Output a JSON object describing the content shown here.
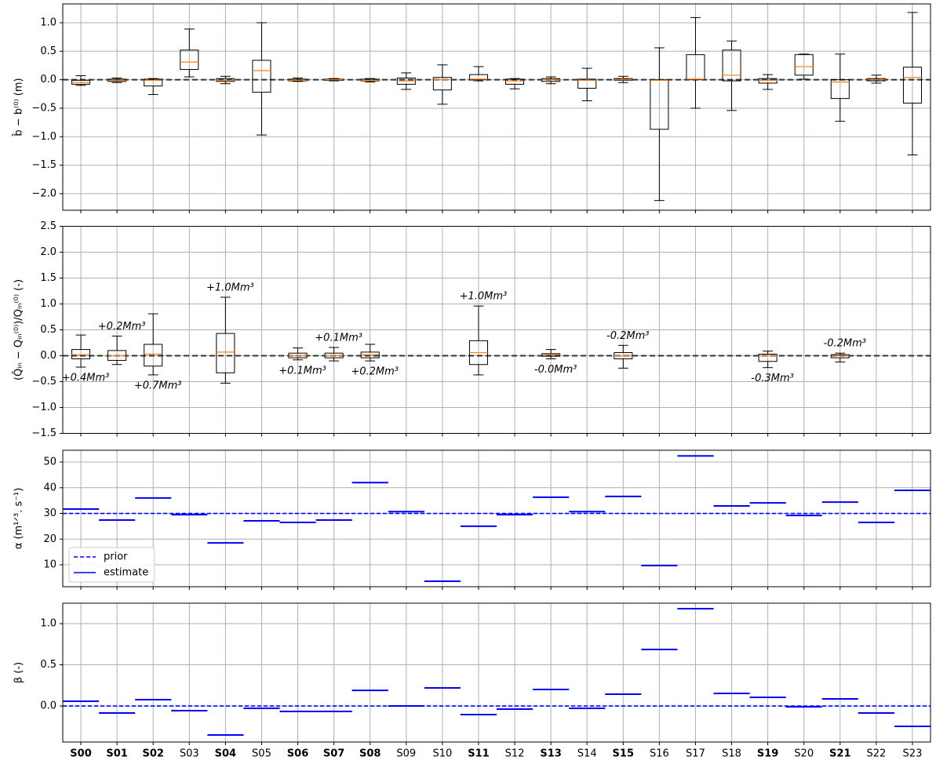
{
  "chart_data": [
    {
      "type": "box",
      "ylabel": "b̂ − b⁽⁰⁾ (m)",
      "ylim": [
        -2.29,
        1.33
      ],
      "yticks": [
        {
          "value": -2.0,
          "label": "−2.0"
        },
        {
          "value": -1.5,
          "label": "−1.5"
        },
        {
          "value": -1.0,
          "label": "−1.0"
        },
        {
          "value": -0.5,
          "label": "−0.5"
        },
        {
          "value": 0,
          "label": "0.0"
        },
        0.5,
        {
          "value": 1.0,
          "label": "1.0"
        }
      ],
      "grid": true,
      "reference_line": 0,
      "median_color": "#ff7f0e",
      "whisker_low": [
        -0.1,
        -0.05,
        -0.26,
        0.05,
        -0.07,
        -0.97,
        -0.03,
        -0.02,
        -0.04,
        -0.17,
        -0.43,
        -0.02,
        -0.16,
        -0.07,
        -0.37,
        -0.05,
        -2.12,
        -0.5,
        -0.54,
        -0.17,
        0.01,
        -0.73,
        -0.06,
        -1.32
      ],
      "q1": [
        -0.08,
        -0.03,
        -0.11,
        0.18,
        -0.03,
        -0.22,
        -0.02,
        -0.01,
        -0.02,
        -0.08,
        -0.18,
        0.0,
        -0.08,
        -0.03,
        -0.15,
        -0.01,
        -0.87,
        0.0,
        -0.02,
        -0.06,
        0.08,
        -0.33,
        -0.02,
        -0.41
      ],
      "median": [
        -0.05,
        -0.01,
        -0.01,
        0.31,
        -0.01,
        0.16,
        -0.01,
        0.0,
        -0.01,
        -0.02,
        0.0,
        0.01,
        -0.02,
        0.0,
        -0.01,
        0.0,
        -0.01,
        0.01,
        0.08,
        -0.01,
        0.23,
        -0.04,
        0.0,
        0.04
      ],
      "q3": [
        -0.01,
        0.01,
        0.01,
        0.52,
        0.02,
        0.34,
        0.01,
        0.01,
        0.01,
        0.03,
        0.04,
        0.09,
        0.01,
        0.02,
        0.01,
        0.02,
        0.0,
        0.44,
        0.52,
        0.02,
        0.44,
        0.0,
        0.02,
        0.22
      ],
      "whisker_high": [
        0.07,
        0.03,
        0.02,
        0.89,
        0.06,
        1.0,
        0.03,
        0.02,
        0.02,
        0.12,
        0.26,
        0.23,
        0.02,
        0.05,
        0.2,
        0.06,
        0.56,
        1.09,
        0.68,
        0.09,
        0.45,
        0.45,
        0.08,
        1.18
      ]
    },
    {
      "type": "box",
      "ylabel": "(Q̂ᵢₙ − Qᵢₙ⁽⁰⁾)/Qᵢₙ⁽⁰⁾ (-)",
      "ylim": [
        -1.5,
        2.5
      ],
      "yticks": [
        {
          "value": -1.5,
          "label": "−1.5"
        },
        {
          "value": -1.0,
          "label": "−1.0"
        },
        {
          "value": -0.5,
          "label": "−0.5"
        },
        {
          "value": 0,
          "label": "0.0"
        },
        0.5,
        {
          "value": 1.0,
          "label": "1.0"
        },
        1.5,
        {
          "value": 2.0,
          "label": "2.0"
        },
        2.5
      ],
      "grid": true,
      "reference_line": 0,
      "median_color": "#ff7f0e",
      "whisker_low": [
        -0.22,
        -0.17,
        -0.37,
        null,
        -0.53,
        null,
        -0.08,
        -0.1,
        -0.1,
        null,
        null,
        -0.37,
        null,
        -0.06,
        null,
        -0.24,
        null,
        null,
        null,
        -0.23,
        null,
        -0.12,
        null,
        null
      ],
      "q1": [
        -0.06,
        -0.09,
        -0.2,
        null,
        -0.33,
        null,
        -0.04,
        -0.04,
        -0.04,
        null,
        null,
        -0.17,
        null,
        -0.01,
        null,
        -0.06,
        null,
        null,
        null,
        -0.11,
        null,
        -0.04,
        null,
        null
      ],
      "median": [
        0.02,
        0.0,
        0.03,
        null,
        0.07,
        null,
        0.0,
        0.0,
        0.02,
        null,
        null,
        0.06,
        null,
        0.02,
        null,
        0.0,
        null,
        null,
        null,
        0.0,
        null,
        0.0,
        null,
        null
      ],
      "q3": [
        0.12,
        0.1,
        0.22,
        null,
        0.43,
        null,
        0.05,
        0.05,
        0.07,
        null,
        null,
        0.29,
        null,
        0.04,
        null,
        0.06,
        null,
        null,
        null,
        0.03,
        null,
        0.02,
        null,
        null
      ],
      "whisker_high": [
        0.4,
        0.38,
        0.81,
        null,
        1.13,
        null,
        0.15,
        0.16,
        0.22,
        null,
        null,
        0.96,
        null,
        0.12,
        null,
        0.2,
        null,
        null,
        null,
        0.09,
        null,
        0.05,
        null,
        null
      ],
      "annotations": [
        "+0.4Mm³",
        "+0.2Mm³",
        "+0.7Mm³",
        null,
        "+1.0Mm³",
        null,
        "+0.1Mm³",
        "+0.1Mm³",
        "+0.2Mm³",
        null,
        null,
        "+1.0Mm³",
        null,
        "-0.0Mm³",
        null,
        "-0.2Mm³",
        null,
        null,
        null,
        "-0.3Mm³",
        null,
        "-0.2Mm³",
        null,
        null
      ]
    },
    {
      "type": "segments",
      "ylabel": "α (m¹ᐟ³. s⁻¹)",
      "ylim": [
        1.45,
        54.6
      ],
      "yticks": [
        10,
        20,
        30,
        40,
        50
      ],
      "grid": true,
      "color": "#0000ff",
      "prior": {
        "name": "prior",
        "value": 30
      },
      "estimate": {
        "name": "estimate",
        "values": [
          31.7,
          27.4,
          36.0,
          29.5,
          18.5,
          27.1,
          26.5,
          27.4,
          42.0,
          30.7,
          3.6,
          25.0,
          29.5,
          36.3,
          30.7,
          36.6,
          9.7,
          52.4,
          32.9,
          34.1,
          29.2,
          34.4,
          26.5,
          39.0
        ]
      },
      "legend": "lower left"
    },
    {
      "type": "segments",
      "ylabel": "β (-)",
      "ylim": [
        -0.438,
        1.248
      ],
      "yticks": [
        {
          "value": 0,
          "label": "0.0"
        },
        0.5,
        {
          "value": 1.0,
          "label": "1.0"
        }
      ],
      "grid": true,
      "color": "#0000ff",
      "prior": {
        "value": 0
      },
      "estimate": {
        "values": [
          0.057,
          -0.086,
          0.076,
          -0.057,
          -0.352,
          -0.029,
          -0.067,
          -0.067,
          0.19,
          0.0,
          0.219,
          -0.105,
          -0.038,
          0.2,
          -0.029,
          0.143,
          0.686,
          1.181,
          0.152,
          0.105,
          -0.01,
          0.086,
          -0.086,
          -0.248
        ]
      },
      "categories": [
        "S00",
        "S01",
        "S02",
        "S03",
        "S04",
        "S05",
        "S06",
        "S07",
        "S08",
        "S09",
        "S10",
        "S11",
        "S12",
        "S13",
        "S14",
        "S15",
        "S16",
        "S17",
        "S18",
        "S19",
        "S20",
        "S21",
        "S22",
        "S23"
      ],
      "category_bold": [
        true,
        true,
        true,
        false,
        true,
        false,
        true,
        true,
        true,
        false,
        false,
        true,
        false,
        true,
        false,
        true,
        false,
        false,
        false,
        true,
        false,
        true,
        false,
        false
      ]
    }
  ]
}
